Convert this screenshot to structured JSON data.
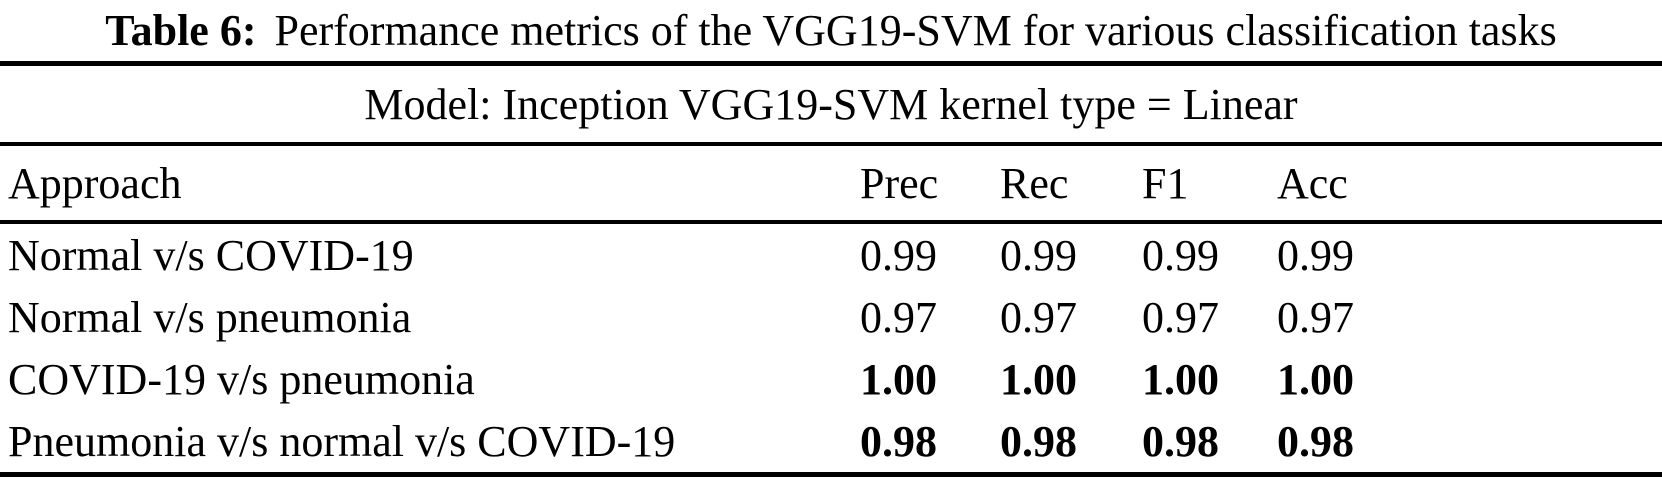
{
  "caption": {
    "label": "Table 6:",
    "text": "Performance metrics of the VGG19-SVM for various classification tasks"
  },
  "table": {
    "model_line": "Model: Inception VGG19-SVM kernel type = Linear",
    "headers": {
      "approach": "Approach",
      "prec": "Prec",
      "rec": "Rec",
      "f1": "F1",
      "acc": "Acc"
    },
    "rows": [
      {
        "approach": "Normal v/s COVID-19",
        "prec": "0.99",
        "rec": "0.99",
        "f1": "0.99",
        "acc": "0.99",
        "bold": false
      },
      {
        "approach": "Normal v/s pneumonia",
        "prec": "0.97",
        "rec": "0.97",
        "f1": "0.97",
        "acc": "0.97",
        "bold": false
      },
      {
        "approach": "COVID-19 v/s pneumonia",
        "prec": "1.00",
        "rec": "1.00",
        "f1": "1.00",
        "acc": "1.00",
        "bold": true
      },
      {
        "approach": "Pneumonia v/s normal v/s COVID-19",
        "prec": "0.98",
        "rec": "0.98",
        "f1": "0.98",
        "acc": "0.98",
        "bold": true
      }
    ]
  }
}
